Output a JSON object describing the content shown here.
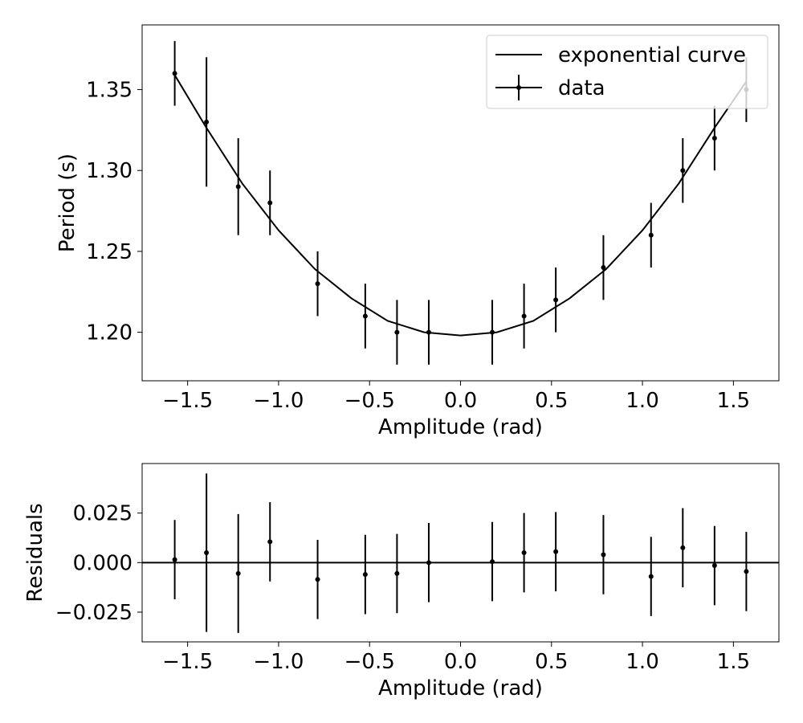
{
  "colors": {
    "line": "#000000",
    "background": "#ffffff",
    "legend_border": "#cccccc"
  },
  "chart_data": [
    {
      "type": "line",
      "xlabel": "Amplitude (rad)",
      "ylabel": "Period (s)",
      "xlim": [
        -1.75,
        1.75
      ],
      "ylim": [
        1.17,
        1.39
      ],
      "xticks": [
        -1.5,
        -1.0,
        -0.5,
        0.0,
        0.5,
        1.0,
        1.5
      ],
      "xtick_labels": [
        "−1.5",
        "−1.0",
        "−0.5",
        "0.0",
        "0.5",
        "1.0",
        "1.5"
      ],
      "yticks": [
        1.2,
        1.25,
        1.3,
        1.35
      ],
      "ytick_labels": [
        "1.20",
        "1.25",
        "1.30",
        "1.35"
      ],
      "grid": false,
      "legend": {
        "position": "upper-right",
        "entries": [
          "exponential curve",
          "data"
        ]
      },
      "series": [
        {
          "name": "exponential curve",
          "kind": "line",
          "x": [
            -1.5708,
            -1.4,
            -1.2,
            -1.0,
            -0.8,
            -0.6,
            -0.4,
            -0.2,
            0.0,
            0.2,
            0.4,
            0.6,
            0.8,
            1.0,
            1.2,
            1.4,
            1.5708
          ],
          "y": [
            1.359,
            1.327,
            1.292,
            1.263,
            1.239,
            1.221,
            1.207,
            1.2,
            1.198,
            1.2,
            1.207,
            1.221,
            1.239,
            1.263,
            1.292,
            1.327,
            1.355
          ]
        },
        {
          "name": "data",
          "kind": "errorbar",
          "x": [
            -1.5708,
            -1.3963,
            -1.2217,
            -1.0472,
            -0.7854,
            -0.5236,
            -0.3491,
            -0.1745,
            0.1745,
            0.3491,
            0.5236,
            0.7854,
            1.0472,
            1.2217,
            1.3963,
            1.5708
          ],
          "y": [
            1.36,
            1.33,
            1.29,
            1.28,
            1.23,
            1.21,
            1.2,
            1.2,
            1.2,
            1.21,
            1.22,
            1.24,
            1.26,
            1.3,
            1.32,
            1.35
          ],
          "yerr": [
            0.02,
            0.04,
            0.03,
            0.02,
            0.02,
            0.02,
            0.02,
            0.02,
            0.02,
            0.02,
            0.02,
            0.02,
            0.02,
            0.02,
            0.02,
            0.02
          ]
        }
      ]
    },
    {
      "type": "scatter",
      "xlabel": "Amplitude (rad)",
      "ylabel": "Residuals",
      "xlim": [
        -1.75,
        1.75
      ],
      "ylim": [
        -0.04,
        0.05
      ],
      "xticks": [
        -1.5,
        -1.0,
        -0.5,
        0.0,
        0.5,
        1.0,
        1.5
      ],
      "xtick_labels": [
        "−1.5",
        "−1.0",
        "−0.5",
        "0.0",
        "0.5",
        "1.0",
        "1.5"
      ],
      "yticks": [
        -0.025,
        0.0,
        0.025
      ],
      "ytick_labels": [
        "−0.025",
        "0.000",
        "0.025"
      ],
      "grid": false,
      "reference_line": 0.0,
      "series": [
        {
          "kind": "errorbar",
          "x": [
            -1.5708,
            -1.3963,
            -1.2217,
            -1.0472,
            -0.7854,
            -0.5236,
            -0.3491,
            -0.1745,
            0.1745,
            0.3491,
            0.5236,
            0.7854,
            1.0472,
            1.2217,
            1.3963,
            1.5708
          ],
          "y": [
            0.0015,
            0.005,
            -0.0055,
            0.0105,
            -0.0085,
            -0.006,
            -0.0055,
            0.0,
            0.0005,
            0.005,
            0.0055,
            0.004,
            -0.007,
            0.0075,
            -0.0015,
            -0.0045
          ],
          "yerr": [
            0.02,
            0.04,
            0.03,
            0.02,
            0.02,
            0.02,
            0.02,
            0.02,
            0.02,
            0.02,
            0.02,
            0.02,
            0.02,
            0.02,
            0.02,
            0.02
          ]
        }
      ]
    }
  ]
}
